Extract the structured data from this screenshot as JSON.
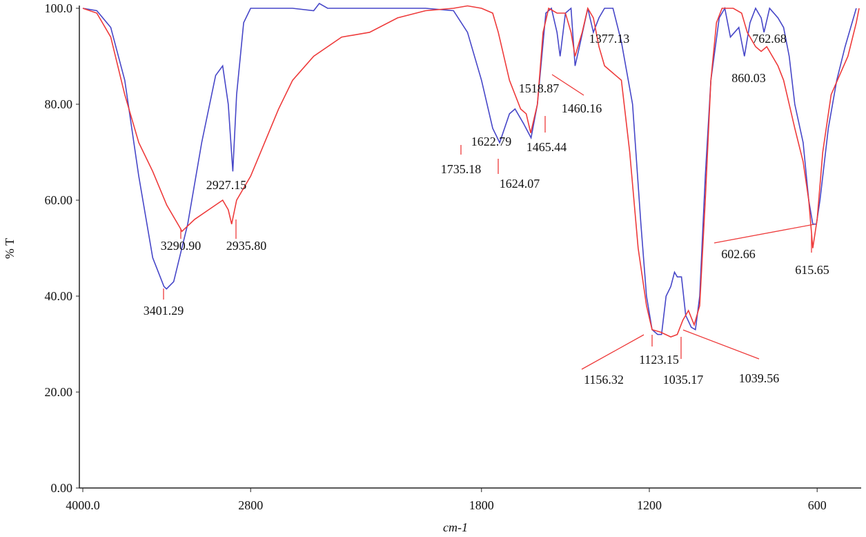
{
  "chart_data": {
    "type": "line",
    "y_label": "% T",
    "x_label": "cm-1",
    "xlim": [
      4000,
      450
    ],
    "ylim": [
      0,
      100
    ],
    "xticks": [
      {
        "value": 4000,
        "label": "4000.0"
      },
      2800,
      1800,
      1200,
      600
    ],
    "yticks": [
      {
        "value": 0,
        "label": "0.00"
      },
      {
        "value": 20,
        "label": "20.00"
      },
      {
        "value": 40,
        "label": "40.00"
      },
      {
        "value": 60,
        "label": "60.00"
      },
      {
        "value": 80,
        "label": "80.00"
      },
      {
        "value": 100,
        "label": "100.0"
      }
    ],
    "series": [
      {
        "color": "#4646c8",
        "x": [
          4000,
          3900,
          3800,
          3700,
          3600,
          3500,
          3420,
          3401.29,
          3350,
          3250,
          3150,
          3050,
          3000,
          2960,
          2927.15,
          2900,
          2850,
          2800,
          2700,
          2500,
          2400,
          2380,
          2350,
          2000,
          1900,
          1850,
          1800,
          1760,
          1735.18,
          1700,
          1680,
          1650,
          1622.79,
          1600,
          1570,
          1550,
          1530,
          1518.87,
          1500,
          1480,
          1465.44,
          1450,
          1420,
          1400,
          1380,
          1360,
          1330,
          1300,
          1260,
          1230,
          1210,
          1190,
          1170,
          1156.32,
          1140,
          1123.15,
          1110,
          1100,
          1085,
          1070,
          1050,
          1035.17,
          1020,
          1000,
          980,
          950,
          930,
          910,
          880,
          860.03,
          840,
          820,
          800,
          790,
          770,
          740,
          720,
          700,
          680,
          650,
          630,
          615.65,
          602.66,
          590,
          560,
          530,
          500,
          460
        ],
        "values": [
          100,
          99.5,
          96,
          85,
          65,
          48,
          42,
          41.5,
          43,
          55,
          72,
          86,
          88,
          80,
          66,
          82,
          97,
          100,
          100,
          100,
          99.5,
          101,
          100,
          100,
          99.5,
          95,
          85,
          75,
          72,
          78,
          79,
          76,
          73,
          80,
          99,
          100,
          95,
          90,
          99,
          100,
          88,
          92,
          100,
          95,
          98,
          100,
          100,
          93,
          80,
          55,
          40,
          33,
          32,
          32,
          40,
          42,
          45,
          44,
          44,
          36,
          33.5,
          33,
          40,
          65,
          85,
          98,
          100,
          94,
          96,
          90,
          97,
          100,
          98,
          95,
          100,
          98,
          96,
          90,
          80,
          72,
          60,
          55,
          55,
          60,
          75,
          85,
          92,
          100
        ]
      },
      {
        "color": "#ee3a3a",
        "x": [
          4000,
          3900,
          3800,
          3700,
          3600,
          3500,
          3400,
          3300,
          3290.9,
          3200,
          3100,
          3000,
          2960,
          2935.8,
          2900,
          2800,
          2700,
          2600,
          2500,
          2400,
          2300,
          2200,
          2100,
          2000,
          1900,
          1850,
          1800,
          1760,
          1740,
          1700,
          1660,
          1640,
          1624.07,
          1600,
          1580,
          1560,
          1530,
          1500,
          1480,
          1465.44,
          1440,
          1420,
          1400,
          1380,
          1360,
          1340,
          1320,
          1300,
          1270,
          1240,
          1210,
          1190,
          1160,
          1123.15,
          1100,
          1080,
          1060,
          1039.56,
          1020,
          1000,
          980,
          960,
          940,
          900,
          870,
          850,
          820,
          800,
          780,
          760,
          740,
          720,
          700,
          680,
          650,
          630,
          615.65,
          600,
          580,
          550,
          520,
          490,
          460,
          450
        ],
        "values": [
          100,
          99,
          94,
          82,
          72,
          66,
          59,
          54,
          53.5,
          56,
          58,
          60,
          58,
          55,
          60,
          65,
          72,
          79,
          85,
          90,
          94,
          95,
          98,
          99.5,
          100,
          100.5,
          100,
          99,
          95,
          85,
          79,
          78,
          74,
          80,
          95,
          100,
          99,
          99,
          95,
          90,
          95,
          100,
          98,
          92,
          88,
          87,
          86,
          85,
          70,
          50,
          38,
          33,
          32.5,
          31.5,
          32,
          35,
          37,
          34,
          38,
          60,
          85,
          97,
          100,
          100,
          99,
          95,
          92,
          91,
          92,
          90,
          88,
          85,
          80,
          75,
          68,
          60,
          50,
          56,
          70,
          82,
          86,
          90,
          97,
          100
        ]
      }
    ],
    "annotations": [
      "3401.29",
      "3290.90",
      "2927.15",
      "2935.80",
      "1735.18",
      "1622.79",
      "1624.07",
      "1465.44",
      "1518.87",
      "1460.16",
      "1377.13",
      "860.03",
      "762.68",
      "602.66",
      "615.65",
      "1156.32",
      "1123.15",
      "1035.17",
      "1039.56"
    ]
  }
}
